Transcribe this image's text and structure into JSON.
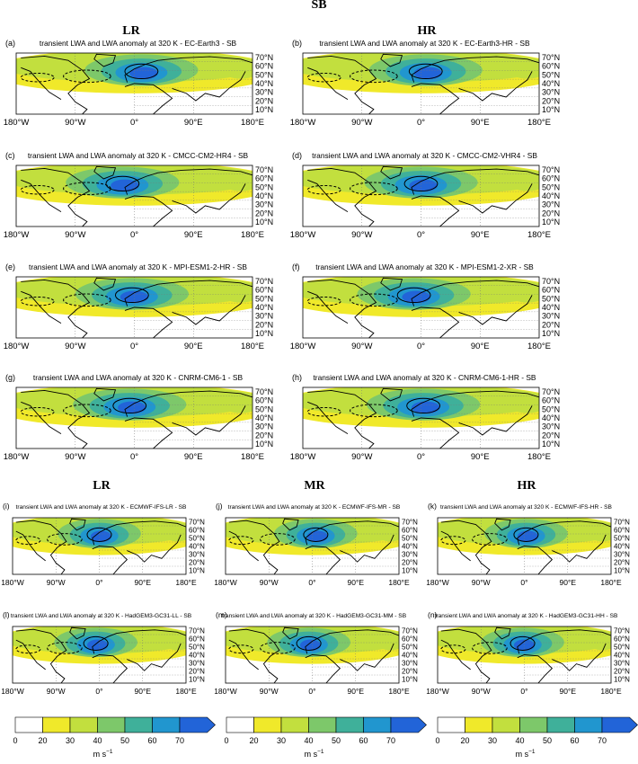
{
  "figure_title": "SB",
  "top_columns": [
    "LR",
    "HR"
  ],
  "bottom_columns": [
    "LR",
    "MR",
    "HR"
  ],
  "lon_ticks": [
    "180°W",
    "90°W",
    "0°",
    "90°E",
    "180°E"
  ],
  "lat_ticks": [
    "70°N",
    "60°N",
    "50°N",
    "40°N",
    "30°N",
    "20°N",
    "10°N"
  ],
  "panels": [
    {
      "id": "(a)",
      "title": "transient LWA and LWA anomaly at 320 K - EC-Earth3 - SB"
    },
    {
      "id": "(b)",
      "title": "transient LWA and LWA anomaly at 320 K - EC-Earth3-HR - SB"
    },
    {
      "id": "(c)",
      "title": "transient LWA and LWA anomaly at 320 K - CMCC-CM2-HR4 - SB"
    },
    {
      "id": "(d)",
      "title": "transient LWA and LWA anomaly at 320 K - CMCC-CM2-VHR4 - SB"
    },
    {
      "id": "(e)",
      "title": "transient LWA and LWA anomaly at 320 K - MPI-ESM1-2-HR - SB"
    },
    {
      "id": "(f)",
      "title": "transient LWA and LWA anomaly at 320 K - MPI-ESM1-2-XR - SB"
    },
    {
      "id": "(g)",
      "title": "transient LWA and LWA anomaly at 320 K - CNRM-CM6-1 - SB"
    },
    {
      "id": "(h)",
      "title": "transient LWA and LWA anomaly at 320 K - CNRM-CM6-1-HR - SB"
    },
    {
      "id": "(i)",
      "title": "transient LWA and LWA anomaly at 320 K - ECMWF-IFS-LR - SB"
    },
    {
      "id": "(j)",
      "title": "transient LWA and LWA anomaly at 320 K - ECMWF-IFS-MR - SB"
    },
    {
      "id": "(k)",
      "title": "transient LWA and LWA anomaly at 320 K - ECMWF-IFS-HR - SB"
    },
    {
      "id": "(l)",
      "title": "transient LWA and LWA anomaly at 320 K - HadGEM3-GC31-LL - SB"
    },
    {
      "id": "(m)",
      "title": "transient LWA and LWA anomaly at 320 K - HadGEM3-GC31-MM - SB"
    },
    {
      "id": "(n)",
      "title": "transient LWA and LWA anomaly at 320 K - HadGEM3-GC31-HH - SB"
    }
  ],
  "colorbar": {
    "ticks": [
      "0",
      "20",
      "30",
      "40",
      "50",
      "60",
      "70"
    ],
    "colors": [
      "#ffffff",
      "#f0e92a",
      "#c2df3e",
      "#7dc86a",
      "#3fb09a",
      "#2196cf",
      "#2264d8"
    ],
    "unit_label": "m s",
    "unit_exp": "−1"
  },
  "chart_data": {
    "type": "heatmap",
    "title": "SB",
    "variable": "transient LWA and LWA anomaly at 320 K",
    "levels": [
      0,
      20,
      30,
      40,
      50,
      60,
      70
    ],
    "unit": "m s−1",
    "x_range": [
      "180°W",
      "180°E"
    ],
    "y_range": [
      "10°N",
      "70°N"
    ],
    "models": [
      "EC-Earth3",
      "EC-Earth3-HR",
      "CMCC-CM2-HR4",
      "CMCC-CM2-VHR4",
      "MPI-ESM1-2-HR",
      "MPI-ESM1-2-XR",
      "CNRM-CM6-1",
      "CNRM-CM6-1-HR",
      "ECMWF-IFS-LR",
      "ECMWF-IFS-MR",
      "ECMWF-IFS-HR",
      "HadGEM3-GC31-LL",
      "HadGEM3-GC31-MM",
      "HadGEM3-GC31-HH"
    ]
  }
}
